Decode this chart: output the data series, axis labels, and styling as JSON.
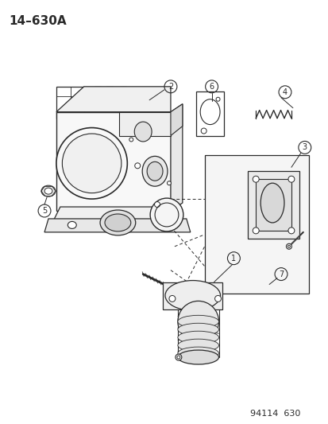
{
  "title": "14–630A",
  "footer": "94114  630",
  "bg_color": "#ffffff",
  "line_color": "#2a2a2a",
  "title_fontsize": 11,
  "footer_fontsize": 8,
  "fig_width": 4.14,
  "fig_height": 5.33
}
